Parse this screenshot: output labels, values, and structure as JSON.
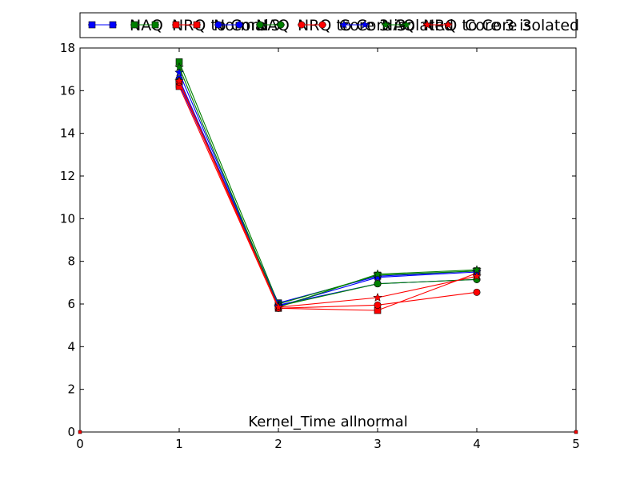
{
  "chart_data": {
    "type": "line",
    "title": "Kernel_Time allnormal",
    "xlabel": "",
    "ylabel": "",
    "xlim": [
      0,
      5
    ],
    "ylim": [
      0,
      18
    ],
    "xticks": [
      0,
      1,
      2,
      3,
      4,
      5
    ],
    "yticks": [
      0,
      2,
      4,
      6,
      8,
      10,
      12,
      14,
      16,
      18
    ],
    "grid": false,
    "legend_position": "top",
    "legend_overlapping": true,
    "legend_entries": [
      {
        "label": "NAQ",
        "color": "#0000ff",
        "marker": "square"
      },
      {
        "label": "NRQ to Core 3",
        "color": "#008000",
        "marker": "square"
      },
      {
        "label": "Normal",
        "color": "#ff0000",
        "marker": "square"
      },
      {
        "label": "NAQ",
        "color": "#0000ff",
        "marker": "circle"
      },
      {
        "label": "NRQ to Core 3",
        "color": "#008000",
        "marker": "circle"
      },
      {
        "label": "Core 3 isolated",
        "color": "#ff0000",
        "marker": "circle"
      },
      {
        "label": "NAQ",
        "color": "#0000ff",
        "marker": "star"
      },
      {
        "label": "NRQ to Core 3",
        "color": "#008000",
        "marker": "star"
      },
      {
        "label": "Core 3 isolated",
        "color": "#ff0000",
        "marker": "star"
      }
    ],
    "series": [
      {
        "color": "#0000ff",
        "marker": "square",
        "x": [
          1,
          2,
          3,
          4
        ],
        "y": [
          16.3,
          6.05,
          7.3,
          7.55
        ]
      },
      {
        "color": "#008000",
        "marker": "square",
        "x": [
          1,
          2,
          3,
          4
        ],
        "y": [
          17.35,
          6.0,
          7.35,
          7.55
        ]
      },
      {
        "color": "#ff0000",
        "marker": "square",
        "x": [
          1,
          2,
          3,
          4
        ],
        "y": [
          16.2,
          5.8,
          5.7,
          7.45
        ]
      },
      {
        "color": "#0000ff",
        "marker": "circle",
        "x": [
          1,
          2,
          3,
          4
        ],
        "y": [
          16.55,
          5.95,
          6.95,
          7.15
        ]
      },
      {
        "color": "#008000",
        "marker": "circle",
        "x": [
          1,
          2,
          3,
          4
        ],
        "y": [
          16.45,
          5.9,
          6.95,
          7.15
        ]
      },
      {
        "color": "#ff0000",
        "marker": "circle",
        "x": [
          1,
          2,
          3,
          4
        ],
        "y": [
          16.4,
          5.8,
          5.95,
          6.55
        ]
      },
      {
        "color": "#0000ff",
        "marker": "star",
        "x": [
          1,
          2,
          3,
          4
        ],
        "y": [
          16.85,
          5.9,
          7.25,
          7.5
        ]
      },
      {
        "color": "#008000",
        "marker": "star",
        "x": [
          1,
          2,
          3,
          4
        ],
        "y": [
          17.1,
          5.85,
          7.4,
          7.6
        ]
      },
      {
        "color": "#ff0000",
        "marker": "star",
        "x": [
          1,
          2,
          3,
          4
        ],
        "y": [
          16.45,
          5.85,
          6.3,
          7.3
        ]
      }
    ]
  }
}
